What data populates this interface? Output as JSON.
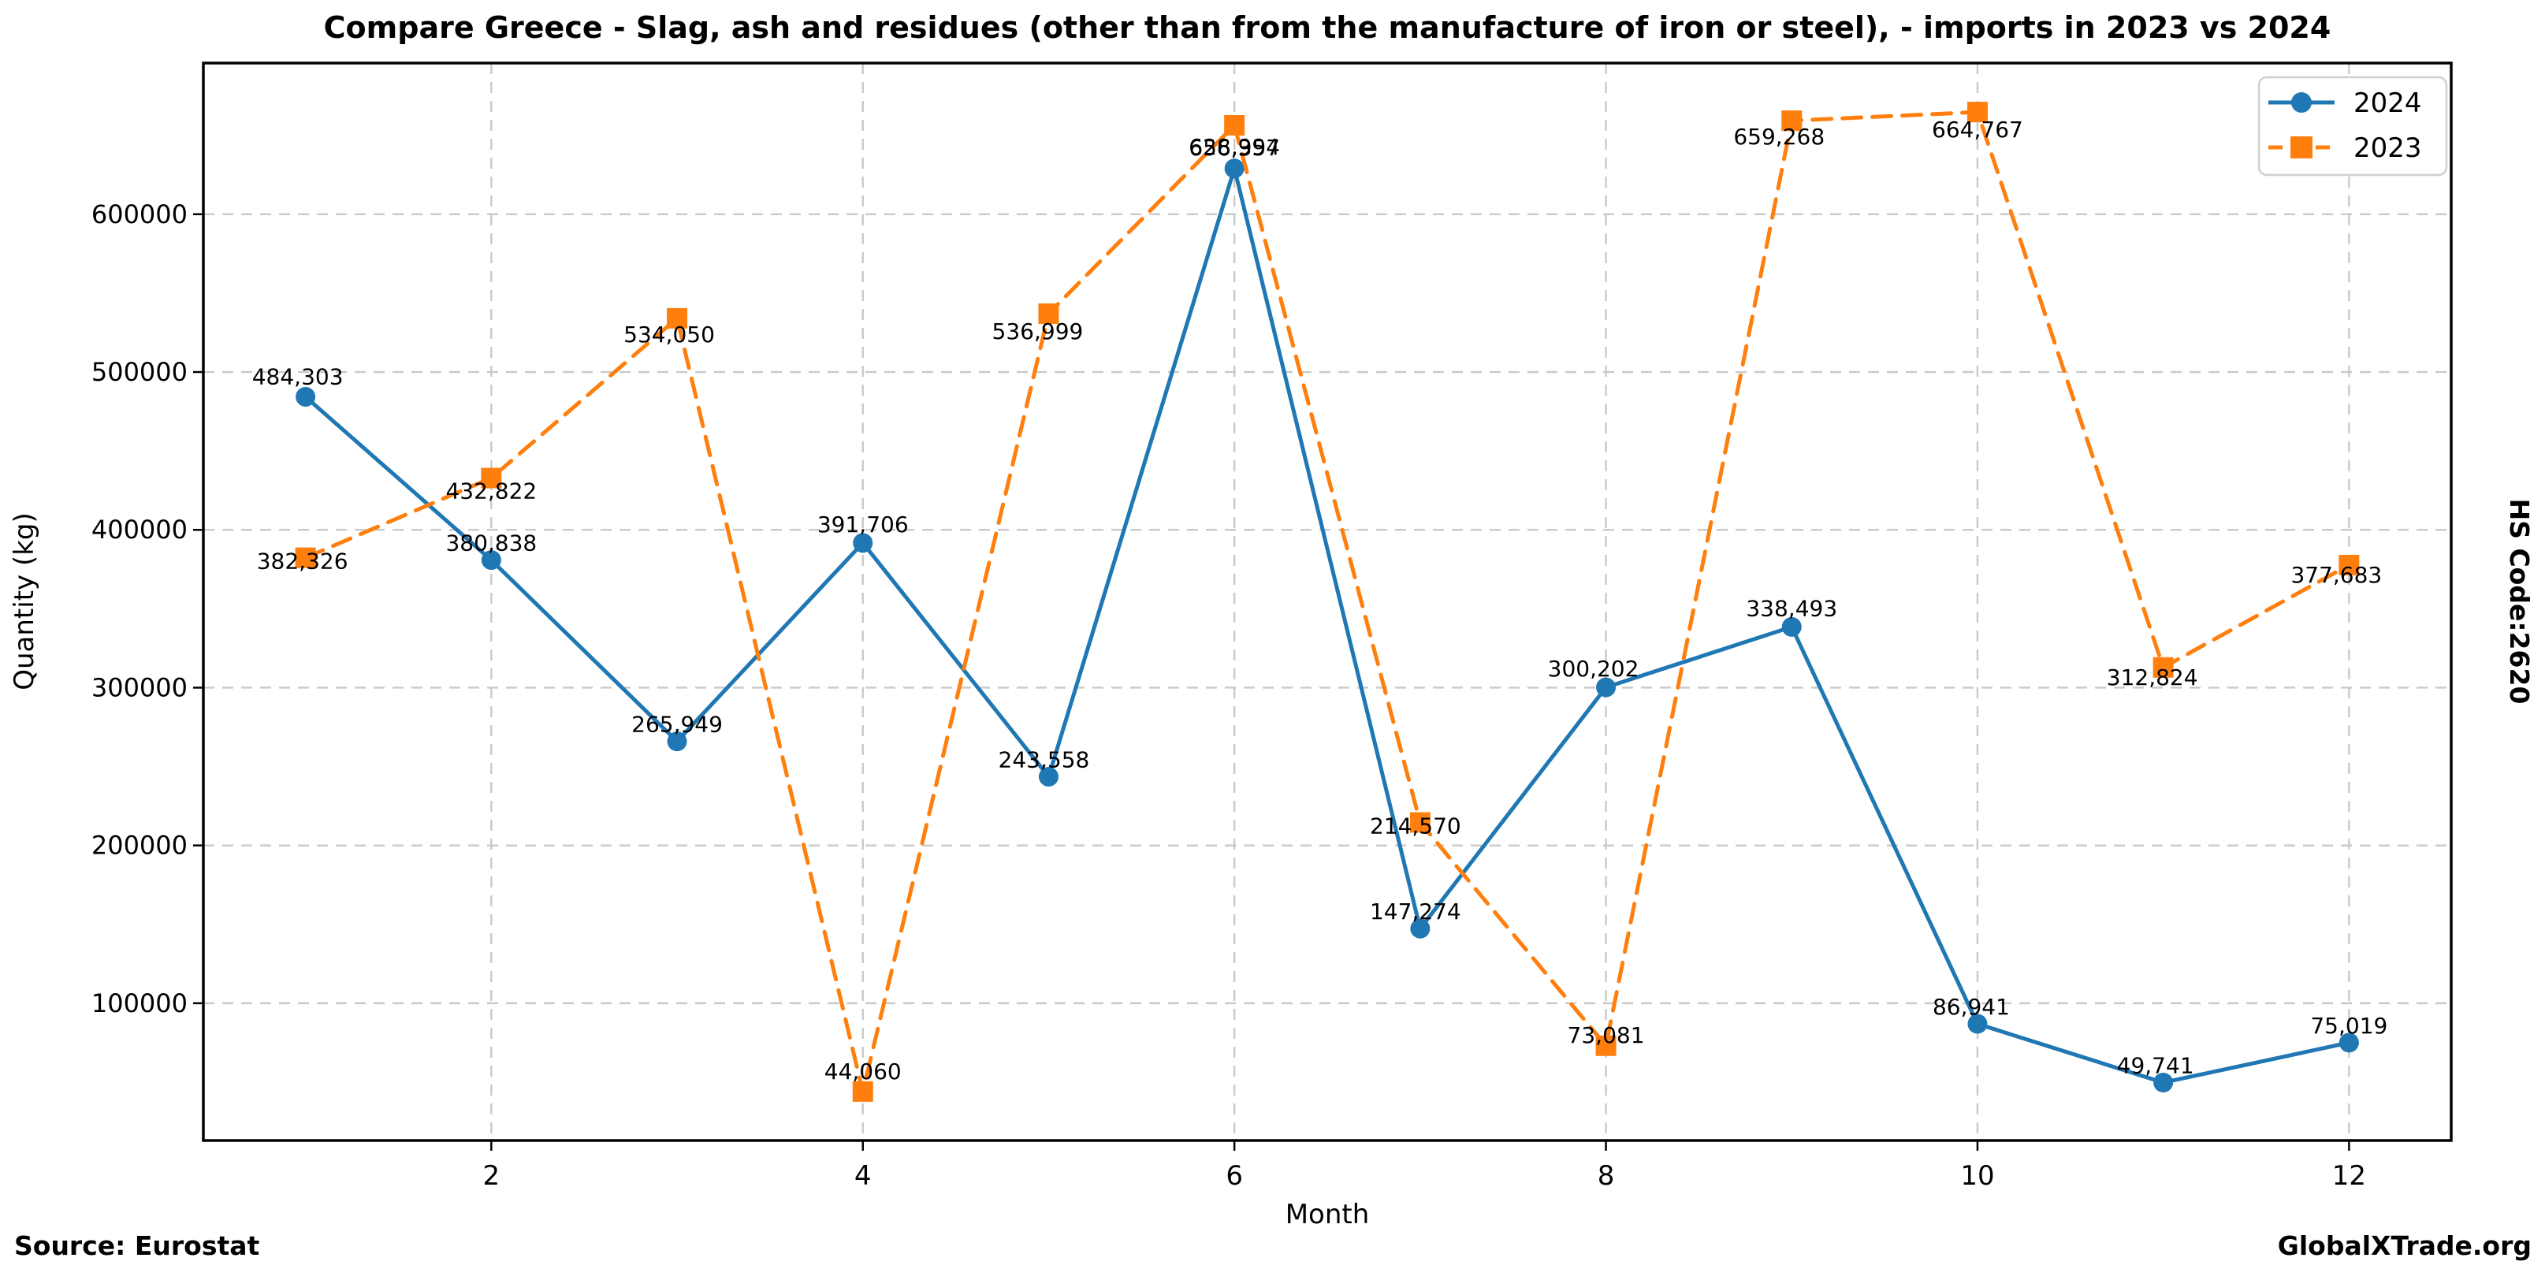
{
  "title": "Compare Greece - Slag, ash and residues (other than from the manufacture of iron or steel), - imports in 2023 vs 2024",
  "side_label": "HS Code:2620",
  "footer": {
    "source": "Source: Eurostat",
    "brand": "GlobalXTrade.org"
  },
  "legend": {
    "entries": [
      "2024",
      "2023"
    ]
  },
  "chart_data": {
    "type": "line",
    "title": "Compare Greece - Slag, ash and residues (other than from the manufacture of iron or steel), - imports in 2023 vs 2024",
    "xlabel": "Month",
    "ylabel": "Quantity (kg)",
    "x": [
      1,
      2,
      3,
      4,
      5,
      6,
      7,
      8,
      9,
      10,
      11,
      12
    ],
    "x_ticks": [
      2,
      4,
      6,
      8,
      10,
      12
    ],
    "y_ticks": [
      100000,
      200000,
      300000,
      400000,
      500000,
      600000
    ],
    "xlim": [
      0.45,
      12.55
    ],
    "ylim": [
      13025,
      695802
    ],
    "grid": true,
    "grid_color": "#c9c9c9",
    "legend_position": "upper right",
    "series": [
      {
        "name": "2024",
        "color": "#1f77b4",
        "line_style": "solid",
        "marker": "circle",
        "values": [
          484303,
          380838,
          265949,
          391706,
          243558,
          628994,
          147274,
          300202,
          338493,
          86941,
          49741,
          75019
        ],
        "labels": [
          "484,303",
          "380,838",
          "265,949",
          "391,706",
          "243,558",
          "628,994",
          "147,274",
          "300,202",
          "338,493",
          "86,941",
          "49,741",
          "75,019"
        ],
        "label_offsets": [
          [
            -10,
            -16
          ],
          [
            0,
            -12
          ],
          [
            0,
            -12
          ],
          [
            0,
            -14
          ],
          [
            -6,
            -12
          ],
          [
            0,
            -18
          ],
          [
            -6,
            -12
          ],
          [
            -16,
            -14
          ],
          [
            0,
            -14
          ],
          [
            -8,
            -12
          ],
          [
            -10,
            -12
          ],
          [
            0,
            -12
          ]
        ]
      },
      {
        "name": "2023",
        "color": "#ff7f0e",
        "line_style": "dashed",
        "marker": "square",
        "values": [
          382326,
          432822,
          534050,
          44060,
          536999,
          656357,
          214570,
          73081,
          659268,
          664767,
          312824,
          377683
        ],
        "labels": [
          "382,326",
          "432,822",
          "534,050",
          "44,060",
          "536,999",
          "656,357",
          "214,570",
          "73,081",
          "659,268",
          "664,767",
          "312,824",
          "377,683"
        ],
        "label_offsets": [
          [
            -4,
            14
          ],
          [
            0,
            26
          ],
          [
            -10,
            30
          ],
          [
            0,
            -16
          ],
          [
            -14,
            32
          ],
          [
            0,
            38
          ],
          [
            -6,
            14
          ],
          [
            0,
            -4
          ],
          [
            -16,
            30
          ],
          [
            0,
            32
          ],
          [
            -14,
            22
          ],
          [
            -16,
            22
          ]
        ]
      }
    ]
  }
}
